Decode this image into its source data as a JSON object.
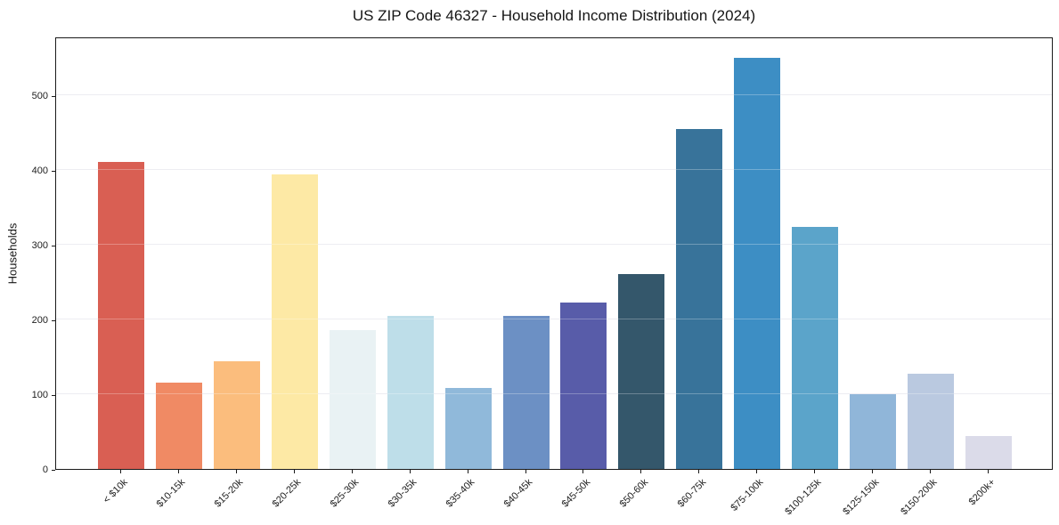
{
  "chart_data": {
    "type": "bar",
    "title": "US ZIP Code 46327 - Household Income Distribution (2024)",
    "xlabel": "",
    "ylabel": "Households",
    "categories": [
      "< $10k",
      "$10-15k",
      "$15-20k",
      "$20-25k",
      "$25-30k",
      "$30-35k",
      "$35-40k",
      "$40-45k",
      "$45-50k",
      "$50-60k",
      "$60-75k",
      "$75-100k",
      "$100-125k",
      "$125-150k",
      "$150-200k",
      "$200k+"
    ],
    "values": [
      410,
      115,
      144,
      394,
      186,
      204,
      108,
      205,
      222,
      260,
      454,
      550,
      323,
      100,
      127,
      44
    ],
    "bar_colors": [
      "#d95f53",
      "#f08a64",
      "#fbbd7d",
      "#fde9a5",
      "#e9f2f4",
      "#bedee9",
      "#90b9da",
      "#6c90c4",
      "#585ca9",
      "#34576b",
      "#38739a",
      "#3d8ec4",
      "#5ba4ca",
      "#90b6d9",
      "#bac9e0",
      "#dbdbe9"
    ],
    "yticks": [
      0,
      100,
      200,
      300,
      400,
      500
    ],
    "ylim": [
      0,
      578
    ],
    "grid": "horizontal",
    "legend": "none",
    "x_tick_rotation": 45,
    "axis_color": "#1a1a1a",
    "grid_color": "#e7e7ed",
    "background_color": "#ffffff"
  }
}
